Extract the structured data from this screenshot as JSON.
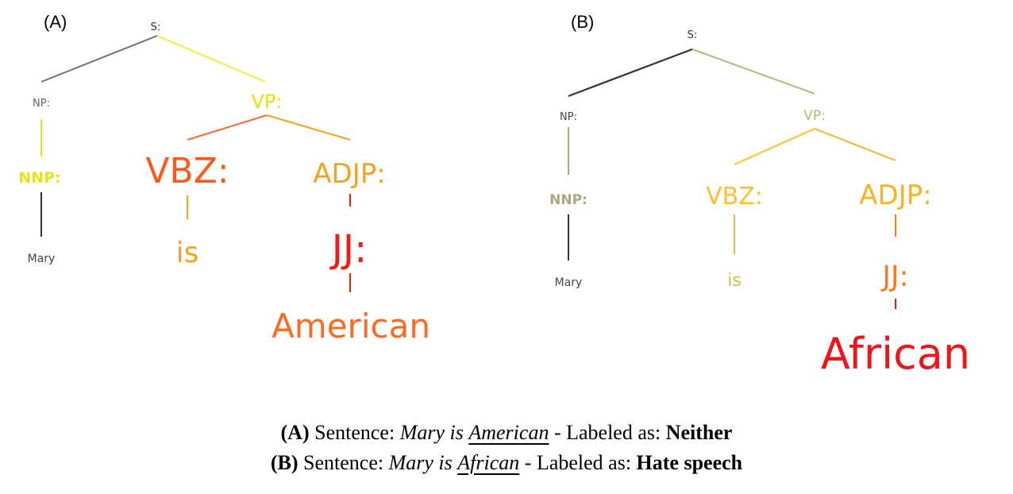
{
  "panels": {
    "A": {
      "letter": "(A)",
      "nodes": {
        "S": {
          "text": "S:",
          "color": "#333333"
        },
        "NP": {
          "text": "NP:",
          "color": "#666666"
        },
        "VP": {
          "text": "VP:",
          "color": "#e8e000"
        },
        "NNP": {
          "text": "NNP:",
          "color": "#e4e419"
        },
        "VBZ": {
          "text": "VBZ:",
          "color": "#ff5a1e"
        },
        "ADJP": {
          "text": "ADJP:",
          "color": "#f7a21b"
        },
        "JJ": {
          "text": "JJ:",
          "color": "#f21a14"
        },
        "Mary": {
          "text": "Mary",
          "color": "#444444"
        },
        "is": {
          "text": "is",
          "color": "#f7a21b"
        },
        "word": {
          "text": "American",
          "color": "#ff6a25"
        }
      }
    },
    "B": {
      "letter": "(B)",
      "nodes": {
        "S": {
          "text": "S:",
          "color": "#333333"
        },
        "NP": {
          "text": "NP:",
          "color": "#444444"
        },
        "VP": {
          "text": "VP:",
          "color": "#b6b679"
        },
        "NNP": {
          "text": "NNP:",
          "color": "#a9a97a"
        },
        "VBZ": {
          "text": "VBZ:",
          "color": "#ffc12e"
        },
        "ADJP": {
          "text": "ADJP:",
          "color": "#f7b421"
        },
        "JJ": {
          "text": "JJ:",
          "color": "#fb7a1e"
        },
        "Mary": {
          "text": "Mary",
          "color": "#444444"
        },
        "is": {
          "text": "is",
          "color": "#c6c640"
        },
        "word": {
          "text": "African",
          "color": "#f2141a"
        }
      }
    }
  },
  "caption": {
    "line1": {
      "tag": "(A)",
      "prefix": "Sentence:",
      "sent_start": "Mary is",
      "sent_word": "American",
      "mid": "- Labeled as:",
      "label": "Neither"
    },
    "line2": {
      "tag": "(B)",
      "prefix": "Sentence:",
      "sent_start": "Mary is",
      "sent_word": "African",
      "mid": "- Labeled as:",
      "label": "Hate speech"
    }
  }
}
